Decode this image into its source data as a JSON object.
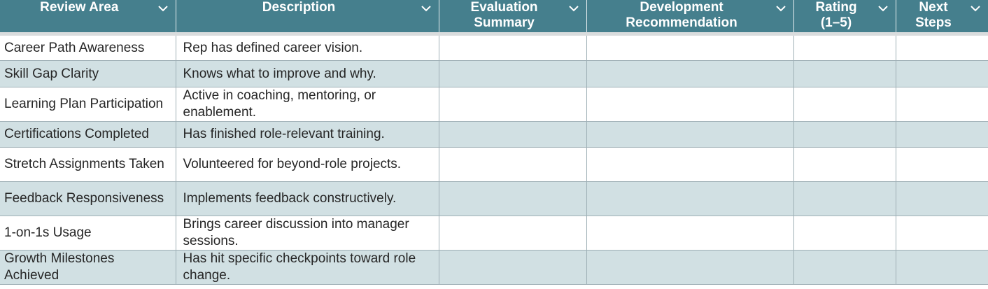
{
  "headers": [
    {
      "line1": "Review Area",
      "line2": ""
    },
    {
      "line1": "Description",
      "line2": ""
    },
    {
      "line1": "Evaluation",
      "line2": "Summary"
    },
    {
      "line1": "Development",
      "line2": "Recommendation"
    },
    {
      "line1": "Rating",
      "line2": "(1–5)"
    },
    {
      "line1": "Next",
      "line2": "Steps"
    }
  ],
  "rows": [
    {
      "area": "Career Path Awareness",
      "description": "Rep has defined career vision.",
      "evaluation": "",
      "recommendation": "",
      "rating": "",
      "next_steps": ""
    },
    {
      "area": "Skill Gap Clarity",
      "description": "Knows what to improve and why.",
      "evaluation": "",
      "recommendation": "",
      "rating": "",
      "next_steps": ""
    },
    {
      "area": "Learning Plan Participation",
      "description": "Active in coaching, mentoring, or enablement.",
      "evaluation": "",
      "recommendation": "",
      "rating": "",
      "next_steps": ""
    },
    {
      "area": "Certifications Completed",
      "description": "Has finished role-relevant training.",
      "evaluation": "",
      "recommendation": "",
      "rating": "",
      "next_steps": ""
    },
    {
      "area": "Stretch Assignments Taken",
      "description": "Volunteered for beyond-role projects.",
      "evaluation": "",
      "recommendation": "",
      "rating": "",
      "next_steps": ""
    },
    {
      "area": "Feedback Responsiveness",
      "description": "Implements feedback constructively.",
      "evaluation": "",
      "recommendation": "",
      "rating": "",
      "next_steps": ""
    },
    {
      "area": "1-on-1s Usage",
      "description": "Brings career discussion into manager sessions.",
      "evaluation": "",
      "recommendation": "",
      "rating": "",
      "next_steps": ""
    },
    {
      "area": "Growth Milestones Achieved",
      "description": "Has hit specific checkpoints toward role change.",
      "evaluation": "",
      "recommendation": "",
      "rating": "",
      "next_steps": ""
    }
  ],
  "colors": {
    "header_bg": "#457f8d",
    "band_row": "#d1e0e3",
    "header_text": "#ffffff"
  },
  "icons": {
    "filter": "chevron-down-icon"
  }
}
